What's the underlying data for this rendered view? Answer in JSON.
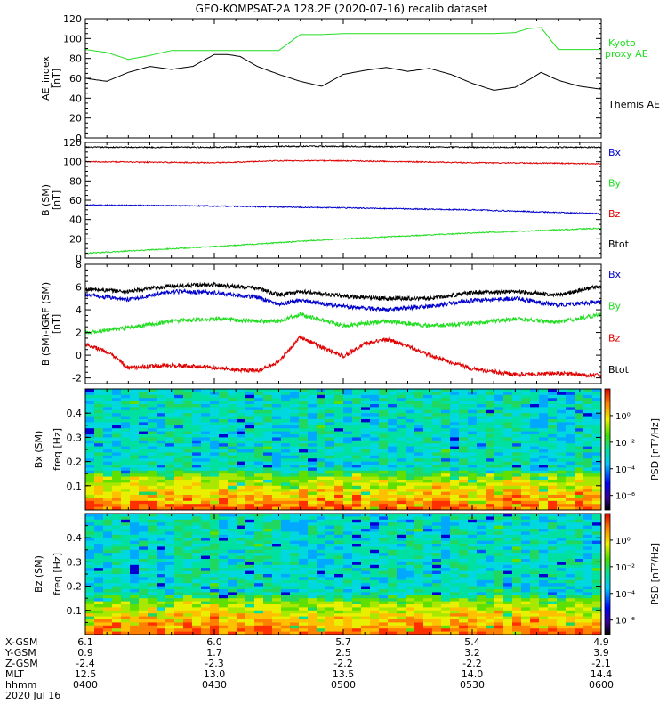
{
  "title": "GEO-KOMPSAT-2A 128.2E (2020-07-16) recalib dataset",
  "colors": {
    "black": "#000000",
    "red": "#e00000",
    "green": "#22dd22",
    "blue": "#0000cc",
    "background": "#ffffff"
  },
  "chart_data": [
    {
      "type": "line",
      "id": "ae",
      "ylabel": "AE_index",
      "yunit": "[nT]",
      "ylim": [
        0,
        120
      ],
      "yticks": [
        "0",
        "20",
        "40",
        "60",
        "80",
        "100",
        "120"
      ],
      "xlim": [
        0,
        120
      ],
      "legend": [
        "Kyoto",
        "proxy AE",
        "Themis AE"
      ],
      "series": [
        {
          "name": "Kyoto proxy AE",
          "color": "green",
          "x": [
            0,
            5,
            10,
            15,
            20,
            25,
            30,
            35,
            40,
            45,
            50,
            55,
            60,
            65,
            70,
            75,
            80,
            85,
            90,
            95,
            100,
            103,
            106,
            110,
            115,
            120
          ],
          "y": [
            89,
            86,
            79,
            83,
            88,
            88,
            88,
            88,
            88,
            88,
            104,
            104,
            105,
            105,
            105,
            105,
            105,
            105,
            105,
            105,
            106,
            110,
            111,
            89,
            89,
            89
          ]
        },
        {
          "name": "Themis AE",
          "color": "black",
          "x": [
            0,
            5,
            10,
            15,
            20,
            25,
            30,
            33,
            36,
            40,
            45,
            50,
            55,
            60,
            65,
            70,
            75,
            80,
            85,
            90,
            95,
            100,
            103,
            106,
            110,
            115,
            120
          ],
          "y": [
            60,
            57,
            66,
            72,
            69,
            72,
            84,
            84,
            82,
            72,
            64,
            57,
            52,
            64,
            68,
            71,
            67,
            70,
            64,
            55,
            48,
            51,
            58,
            66,
            58,
            52,
            49
          ]
        }
      ]
    },
    {
      "type": "line",
      "id": "bsm",
      "ylabel": "B (SM)",
      "yunit": "[nT]",
      "ylim": [
        0,
        120
      ],
      "yticks": [
        "0",
        "20",
        "40",
        "60",
        "80",
        "100",
        "120"
      ],
      "xlim": [
        0,
        120
      ],
      "legend": [
        "Bx",
        "By",
        "Bz",
        "Btot"
      ],
      "series": [
        {
          "name": "Btot",
          "color": "black",
          "x": [
            0,
            30,
            45,
            60,
            90,
            120
          ],
          "y": [
            115,
            115,
            116,
            116,
            115,
            115
          ]
        },
        {
          "name": "Bz",
          "color": "red",
          "x": [
            0,
            30,
            45,
            60,
            90,
            120
          ],
          "y": [
            100,
            99,
            101,
            101,
            99,
            98
          ]
        },
        {
          "name": "Bx",
          "color": "blue",
          "x": [
            0,
            30,
            60,
            90,
            120
          ],
          "y": [
            55,
            54,
            52,
            50,
            46
          ]
        },
        {
          "name": "By",
          "color": "green",
          "x": [
            0,
            30,
            60,
            90,
            120
          ],
          "y": [
            5,
            12,
            20,
            26,
            31
          ]
        }
      ]
    },
    {
      "type": "line",
      "id": "bigrf",
      "ylabel": "B (SM)-IGRF (SM)",
      "yunit": "[nT]",
      "ylim": [
        -2.5,
        8
      ],
      "yticks": [
        "-2",
        "0",
        "2",
        "4",
        "6",
        "8"
      ],
      "xlim": [
        0,
        120
      ],
      "legend": [
        "Bx",
        "By",
        "Bz",
        "Btot"
      ],
      "series": [
        {
          "name": "Btot",
          "color": "black",
          "x": [
            0,
            10,
            20,
            30,
            40,
            45,
            50,
            60,
            70,
            80,
            90,
            100,
            110,
            120
          ],
          "y": [
            5.8,
            5.6,
            6.1,
            6.2,
            5.9,
            5.3,
            5.6,
            5.2,
            5.0,
            5.0,
            5.5,
            5.6,
            5.3,
            6.1
          ]
        },
        {
          "name": "Bx",
          "color": "blue",
          "x": [
            0,
            10,
            20,
            30,
            40,
            45,
            50,
            60,
            70,
            80,
            90,
            100,
            110,
            120
          ],
          "y": [
            5.3,
            4.9,
            5.6,
            5.5,
            5.1,
            4.5,
            4.8,
            4.3,
            4.0,
            4.3,
            4.8,
            5.0,
            4.4,
            4.7
          ]
        },
        {
          "name": "By",
          "color": "green",
          "x": [
            0,
            10,
            20,
            30,
            40,
            45,
            50,
            60,
            70,
            80,
            90,
            100,
            110,
            120
          ],
          "y": [
            2.0,
            2.4,
            3.0,
            3.2,
            3.0,
            3.0,
            3.6,
            2.6,
            3.0,
            2.6,
            2.8,
            3.2,
            2.9,
            3.6
          ]
        },
        {
          "name": "Bz",
          "color": "red",
          "x": [
            0,
            5,
            10,
            20,
            30,
            40,
            45,
            50,
            55,
            60,
            65,
            70,
            75,
            80,
            90,
            100,
            110,
            120
          ],
          "y": [
            1.0,
            0.3,
            -1.1,
            -0.9,
            -1.1,
            -1.4,
            -0.6,
            1.6,
            0.7,
            -0.1,
            1.0,
            1.4,
            0.8,
            0.0,
            -1.2,
            -1.7,
            -1.6,
            -1.8
          ]
        }
      ]
    },
    {
      "type": "heatmap",
      "id": "bx_spec",
      "ylabel": "Bx (SM)",
      "yunit2": "freq [Hz]",
      "ylim": [
        0,
        0.5
      ],
      "yticks": [
        "0.1",
        "0.2",
        "0.3",
        "0.4"
      ],
      "cbar_label": "PSD [nT²/Hz]",
      "cbar_ticks": [
        "10⁰",
        "10⁻²",
        "10⁻⁴",
        "10⁻⁶"
      ]
    },
    {
      "type": "heatmap",
      "id": "bz_spec",
      "ylabel": "Bz (SM)",
      "yunit2": "freq [Hz]",
      "ylim": [
        0,
        0.5
      ],
      "yticks": [
        "0.1",
        "0.2",
        "0.3",
        "0.4"
      ],
      "cbar_label": "PSD [nT²/Hz]",
      "cbar_ticks": [
        "10⁰",
        "10⁻²",
        "10⁻⁴",
        "10⁻⁶"
      ]
    }
  ],
  "x_axis": {
    "row_labels": [
      "X-GSM",
      "Y-GSM",
      "Z-GSM",
      "MLT",
      "hhmm",
      "2020 Jul 16"
    ],
    "ticks": [
      {
        "x": 0,
        "values": [
          "6.1",
          "0.9",
          "-2.4",
          "12.5",
          "0400"
        ]
      },
      {
        "x": 30,
        "values": [
          "6.0",
          "1.7",
          "-2.3",
          "13.0",
          "0430"
        ]
      },
      {
        "x": 60,
        "values": [
          "5.7",
          "2.5",
          "-2.2",
          "13.5",
          "0500"
        ]
      },
      {
        "x": 90,
        "values": [
          "5.4",
          "3.2",
          "-2.2",
          "14.0",
          "0530"
        ]
      },
      {
        "x": 120,
        "values": [
          "4.9",
          "3.9",
          "-2.1",
          "14.4",
          "0600"
        ]
      }
    ]
  }
}
